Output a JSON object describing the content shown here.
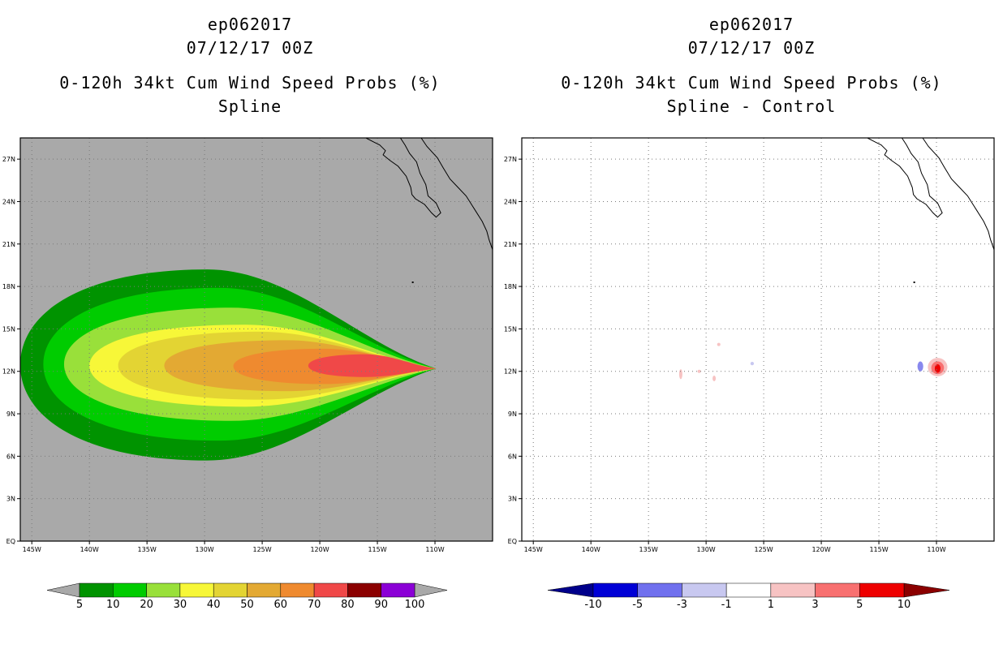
{
  "chart_data": [
    {
      "type": "heatmap",
      "title_lines": [
        "ep062017",
        "07/12/17 00Z",
        "0-120h 34kt Cum Wind Speed Probs (%)",
        "Spline"
      ],
      "lon_range": [
        -146,
        -105
      ],
      "lat_range": [
        0,
        28.5
      ],
      "x_ticks": [
        {
          "v": -145,
          "label": "145W"
        },
        {
          "v": -140,
          "label": "140W"
        },
        {
          "v": -135,
          "label": "135W"
        },
        {
          "v": -130,
          "label": "130W"
        },
        {
          "v": -125,
          "label": "125W"
        },
        {
          "v": -120,
          "label": "120W"
        },
        {
          "v": -115,
          "label": "115W"
        },
        {
          "v": -110,
          "label": "110W"
        }
      ],
      "y_ticks": [
        {
          "v": 0,
          "label": "EQ"
        },
        {
          "v": 3,
          "label": "3N"
        },
        {
          "v": 6,
          "label": "6N"
        },
        {
          "v": 9,
          "label": "9N"
        },
        {
          "v": 12,
          "label": "12N"
        },
        {
          "v": 15,
          "label": "15N"
        },
        {
          "v": 18,
          "label": "18N"
        },
        {
          "v": 21,
          "label": "21N"
        },
        {
          "v": 24,
          "label": "24N"
        },
        {
          "v": 27,
          "label": "27N"
        }
      ],
      "background": "#a9a9a9",
      "contours": [
        {
          "level": 5,
          "color": "#009300",
          "west": -146.0,
          "north": 19.2,
          "south": 5.7
        },
        {
          "level": 10,
          "color": "#00cc00",
          "west": -144.0,
          "north": 17.9,
          "south": 7.1
        },
        {
          "level": 20,
          "color": "#99e03a",
          "west": -142.2,
          "north": 16.5,
          "south": 8.5
        },
        {
          "level": 30,
          "color": "#f7f738",
          "west": -140.0,
          "north": 15.3,
          "south": 9.5
        },
        {
          "level": 40,
          "color": "#e3d433",
          "west": -137.5,
          "north": 14.8,
          "south": 10.0
        },
        {
          "level": 50,
          "color": "#e3a933",
          "west": -133.5,
          "north": 14.2,
          "south": 10.6
        },
        {
          "level": 60,
          "color": "#ef8a2f",
          "west": -127.5,
          "north": 13.6,
          "south": 11.1
        },
        {
          "level": 70,
          "color": "#f04848",
          "west": -121.0,
          "north": 13.2,
          "south": 11.6
        }
      ],
      "tip": {
        "lon": -109.9,
        "lat": 12.2
      },
      "colorbar": {
        "labels": [
          "5",
          "10",
          "20",
          "30",
          "40",
          "50",
          "60",
          "70",
          "80",
          "90",
          "100"
        ],
        "colors": [
          "#009300",
          "#00cc00",
          "#99e03a",
          "#f7f738",
          "#e3d433",
          "#e3a933",
          "#ef8a2f",
          "#f04848",
          "#8b0000",
          "#8b00d6"
        ],
        "low_arrow": "#a9a9a9",
        "high_arrow": "#a9a9a9"
      }
    },
    {
      "type": "heatmap",
      "title_lines": [
        "ep062017",
        "07/12/17 00Z",
        "0-120h 34kt Cum Wind Speed Probs (%)",
        "Spline - Control"
      ],
      "lon_range": [
        -146,
        -105
      ],
      "lat_range": [
        0,
        28.5
      ],
      "x_ticks": [
        {
          "v": -145,
          "label": "145W"
        },
        {
          "v": -140,
          "label": "140W"
        },
        {
          "v": -135,
          "label": "135W"
        },
        {
          "v": -130,
          "label": "130W"
        },
        {
          "v": -125,
          "label": "125W"
        },
        {
          "v": -120,
          "label": "120W"
        },
        {
          "v": -115,
          "label": "115W"
        },
        {
          "v": -110,
          "label": "110W"
        }
      ],
      "y_ticks": [
        {
          "v": 0,
          "label": "EQ"
        },
        {
          "v": 3,
          "label": "3N"
        },
        {
          "v": 6,
          "label": "6N"
        },
        {
          "v": 9,
          "label": "9N"
        },
        {
          "v": 12,
          "label": "12N"
        },
        {
          "v": 15,
          "label": "15N"
        },
        {
          "v": 18,
          "label": "18N"
        },
        {
          "v": 21,
          "label": "21N"
        },
        {
          "v": 24,
          "label": "24N"
        },
        {
          "v": 27,
          "label": "27N"
        }
      ],
      "background": "#ffffff",
      "blobs": [
        {
          "lon": -109.9,
          "lat": 12.3,
          "rlon": 0.85,
          "rlat": 0.65,
          "color": "#f7c3c3"
        },
        {
          "lon": -109.9,
          "lat": 12.25,
          "rlon": 0.55,
          "rlat": 0.45,
          "color": "#f87070"
        },
        {
          "lon": -109.9,
          "lat": 12.2,
          "rlon": 0.25,
          "rlat": 0.3,
          "color": "#ee0000"
        },
        {
          "lon": -111.4,
          "lat": 12.35,
          "rlon": 0.25,
          "rlat": 0.35,
          "color": "#8888ee"
        },
        {
          "lon": -132.2,
          "lat": 11.8,
          "rlon": 0.12,
          "rlat": 0.35,
          "color": "#f7c3c3"
        },
        {
          "lon": -130.6,
          "lat": 12.0,
          "rlon": 0.12,
          "rlat": 0.1,
          "color": "#f7c3c3"
        },
        {
          "lon": -129.3,
          "lat": 11.5,
          "rlon": 0.1,
          "rlat": 0.2,
          "color": "#f7c3c3"
        },
        {
          "lon": -128.9,
          "lat": 13.9,
          "rlon": 0.1,
          "rlat": 0.1,
          "color": "#f7c3c3"
        },
        {
          "lon": -126.0,
          "lat": 12.55,
          "rlon": 0.15,
          "rlat": 0.12,
          "color": "#c8c8f0"
        }
      ],
      "colorbar": {
        "labels": [
          "-10",
          "-5",
          "-3",
          "-1",
          "1",
          "3",
          "5",
          "10"
        ],
        "colors": [
          "#0000d6",
          "#7070ee",
          "#c8c8f0",
          "#ffffff",
          "#f7c3c3",
          "#f87070",
          "#ee0000"
        ],
        "low_arrow": "#00008b",
        "high_arrow": "#8b0000"
      }
    }
  ]
}
